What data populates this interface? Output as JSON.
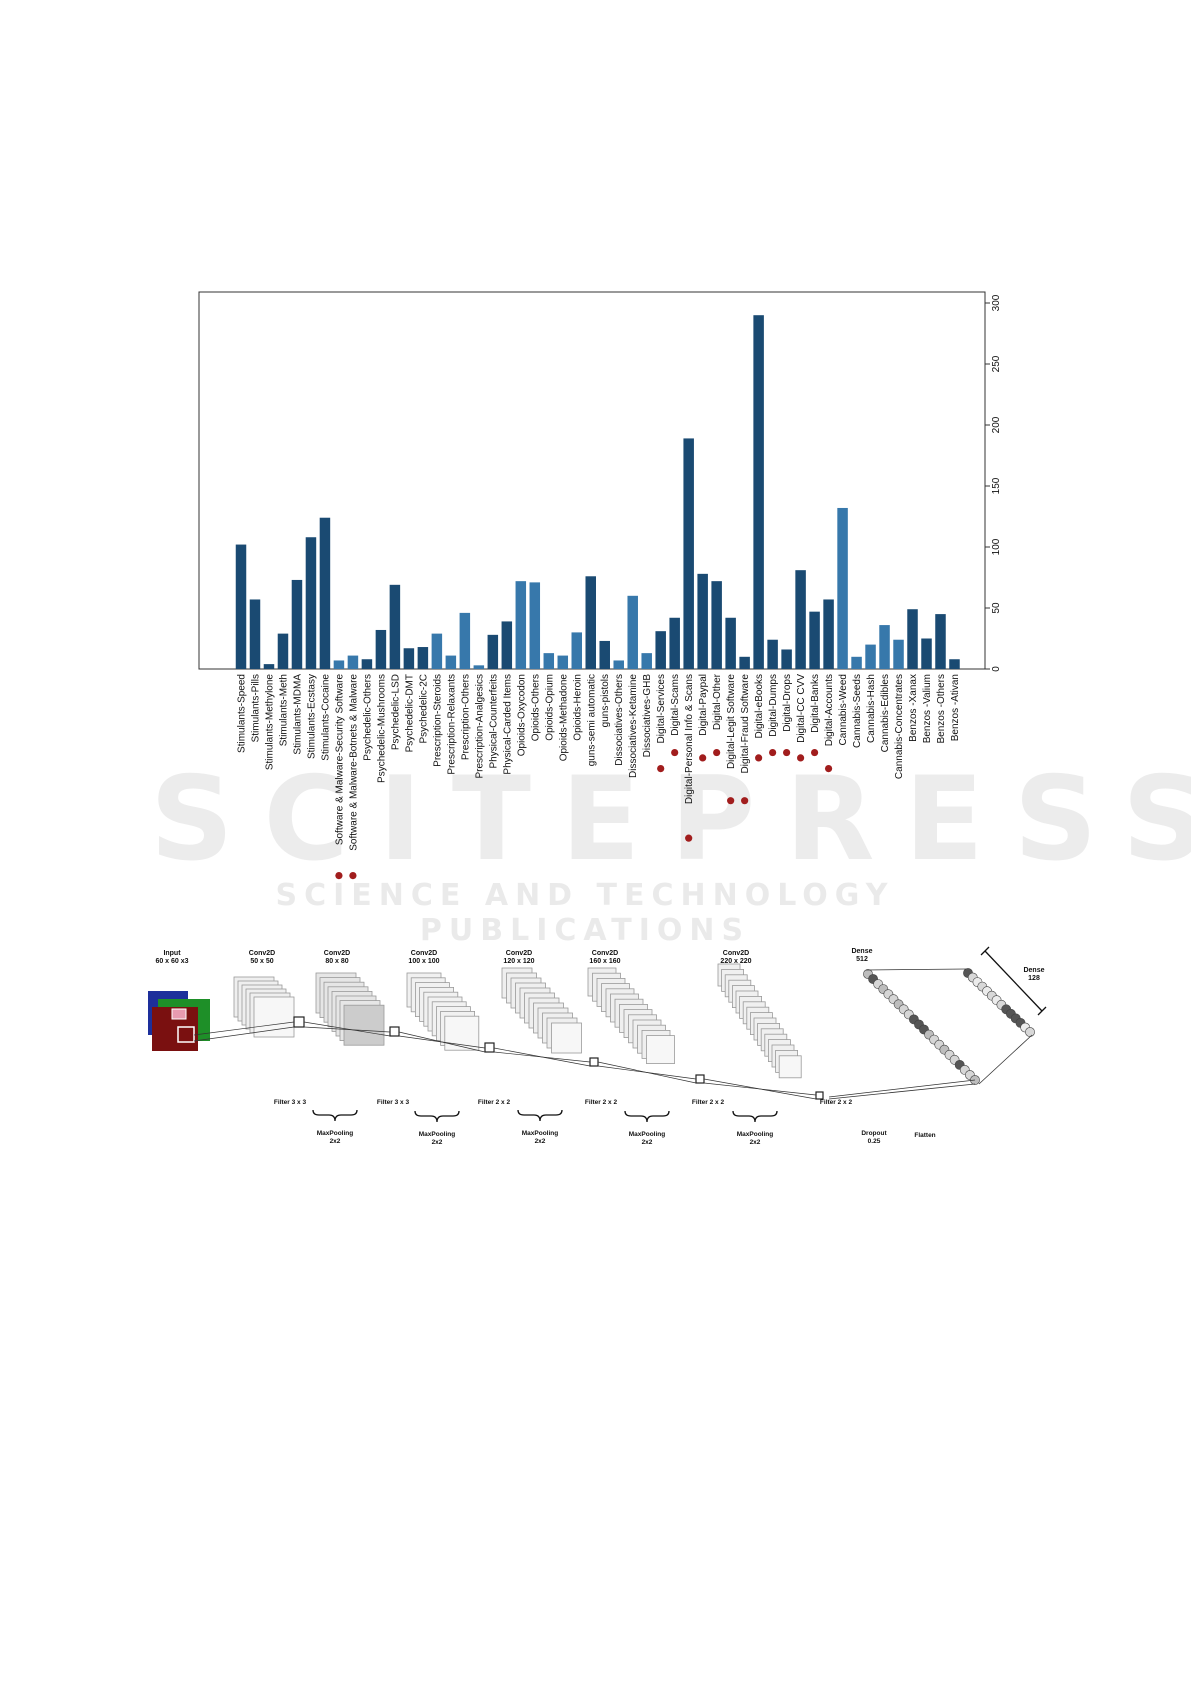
{
  "watermark": {
    "main": "SCITEPRESS",
    "sub": "SCIENCE AND TECHNOLOGY PUBLICATIONS"
  },
  "colors": {
    "dark_bar": "#1a4a72",
    "light_bar": "#3778ab",
    "marker": "#a11d1d",
    "frame": "#333333"
  },
  "chart_data": {
    "type": "bar",
    "ylim": [
      0,
      300
    ],
    "yticks": [
      0,
      50,
      100,
      150,
      200,
      250,
      300
    ],
    "y_axis_side": "right",
    "grid": false,
    "categories": [
      "Stimulants-Speed",
      "Stimulants-Pills",
      "Stimulants-Methylone",
      "Stimulants-Meth",
      "Stimulants-MDMA",
      "Stimulants-Ecstasy",
      "Stimulants-Cocaine",
      "Software & Malware-Security Software",
      "Software & Malware-Botnets & Malware",
      "Psychedelic-Others",
      "Psychedelic-Mushrooms",
      "Psychedelic-LSD",
      "Psychedelic-DMT",
      "Psychedelic-2C",
      "Prescription-Steroids",
      "Prescription-Relaxants",
      "Prescription-Others",
      "Prescription-Analgesics",
      "Physical-Counterfeits",
      "Physical-Carded Items",
      "Opioids-Oxycodon",
      "Opioids-Others",
      "Opioids-Opium",
      "Opioids-Methadone",
      "Opioids-Heroin",
      "guns-semi automatic",
      "guns-pistols",
      "Dissociatives-Others",
      "Dissociatives-Ketamine",
      "Dissociatives-GHB",
      "Digital-Services",
      "Digital-Scams",
      "Digital-Personal Info & Scans",
      "Digital-Paypal",
      "Digital-Other",
      "Digital-Legit Software",
      "Digital-Fraud Software",
      "Digital-eBooks",
      "Digital-Dumps",
      "Digital-Drops",
      "Digital-CC CVV",
      "Digital-Banks",
      "Digital-Accounts",
      "Cannabis-Weed",
      "Cannabis-Seeds",
      "Cannabis-Hash",
      "Cannabis-Edibles",
      "Cannabis-Concentrates",
      "Benzos -Xanax",
      "Benzos -Valium",
      "Benzos -Others",
      "Benzos -Ativan"
    ],
    "values": [
      102,
      57,
      4,
      29,
      73,
      108,
      124,
      7,
      11,
      8,
      32,
      69,
      17,
      18,
      29,
      11,
      46,
      3,
      28,
      39,
      72,
      71,
      13,
      11,
      30,
      76,
      23,
      7,
      60,
      13,
      31,
      42,
      189,
      78,
      72,
      42,
      10,
      290,
      24,
      16,
      81,
      47,
      57,
      132,
      10,
      20,
      36,
      24,
      49,
      25,
      45,
      8
    ],
    "shade": [
      "dark",
      "dark",
      "dark",
      "dark",
      "dark",
      "dark",
      "dark",
      "light",
      "light",
      "dark",
      "dark",
      "dark",
      "dark",
      "dark",
      "light",
      "light",
      "light",
      "light",
      "dark",
      "dark",
      "light",
      "light",
      "light",
      "light",
      "light",
      "dark",
      "dark",
      "light",
      "light",
      "light",
      "dark",
      "dark",
      "dark",
      "dark",
      "dark",
      "dark",
      "dark",
      "dark",
      "dark",
      "dark",
      "dark",
      "dark",
      "dark",
      "light",
      "light",
      "light",
      "light",
      "light",
      "dark",
      "dark",
      "dark",
      "dark"
    ],
    "marked": [
      false,
      false,
      false,
      false,
      false,
      false,
      false,
      true,
      true,
      false,
      false,
      false,
      false,
      false,
      false,
      false,
      false,
      false,
      false,
      false,
      false,
      false,
      false,
      false,
      false,
      false,
      false,
      false,
      false,
      false,
      true,
      true,
      true,
      true,
      true,
      true,
      true,
      true,
      true,
      true,
      true,
      true,
      true,
      false,
      false,
      false,
      false,
      false,
      false,
      false,
      false,
      false
    ]
  },
  "cnn_diagram": {
    "stages": [
      {
        "title": "Input",
        "size": "60 x 60 x3"
      },
      {
        "title": "Conv2D",
        "size": "50 x 50"
      },
      {
        "title": "Conv2D",
        "size": "80 x 80"
      },
      {
        "title": "Conv2D",
        "size": "100 x 100"
      },
      {
        "title": "Conv2D",
        "size": "120 x 120"
      },
      {
        "title": "Conv2D",
        "size": "160 x 160"
      },
      {
        "title": "Conv2D",
        "size": "220 x 220"
      },
      {
        "title": "Dense",
        "size": "512"
      },
      {
        "title": "Dense",
        "size": "128"
      }
    ],
    "filters": [
      "Filter 3 x 3",
      "Filter 3 x 3",
      "Filter 2 x 2",
      "Filter 2 x 2",
      "Filter 2 x 2",
      "Filter 2 x 2"
    ],
    "pooling": {
      "title": "MaxPooling",
      "size": "2x2"
    },
    "dropout": {
      "title": "Dropout",
      "value": "0.25"
    },
    "flatten": "Flatten"
  }
}
